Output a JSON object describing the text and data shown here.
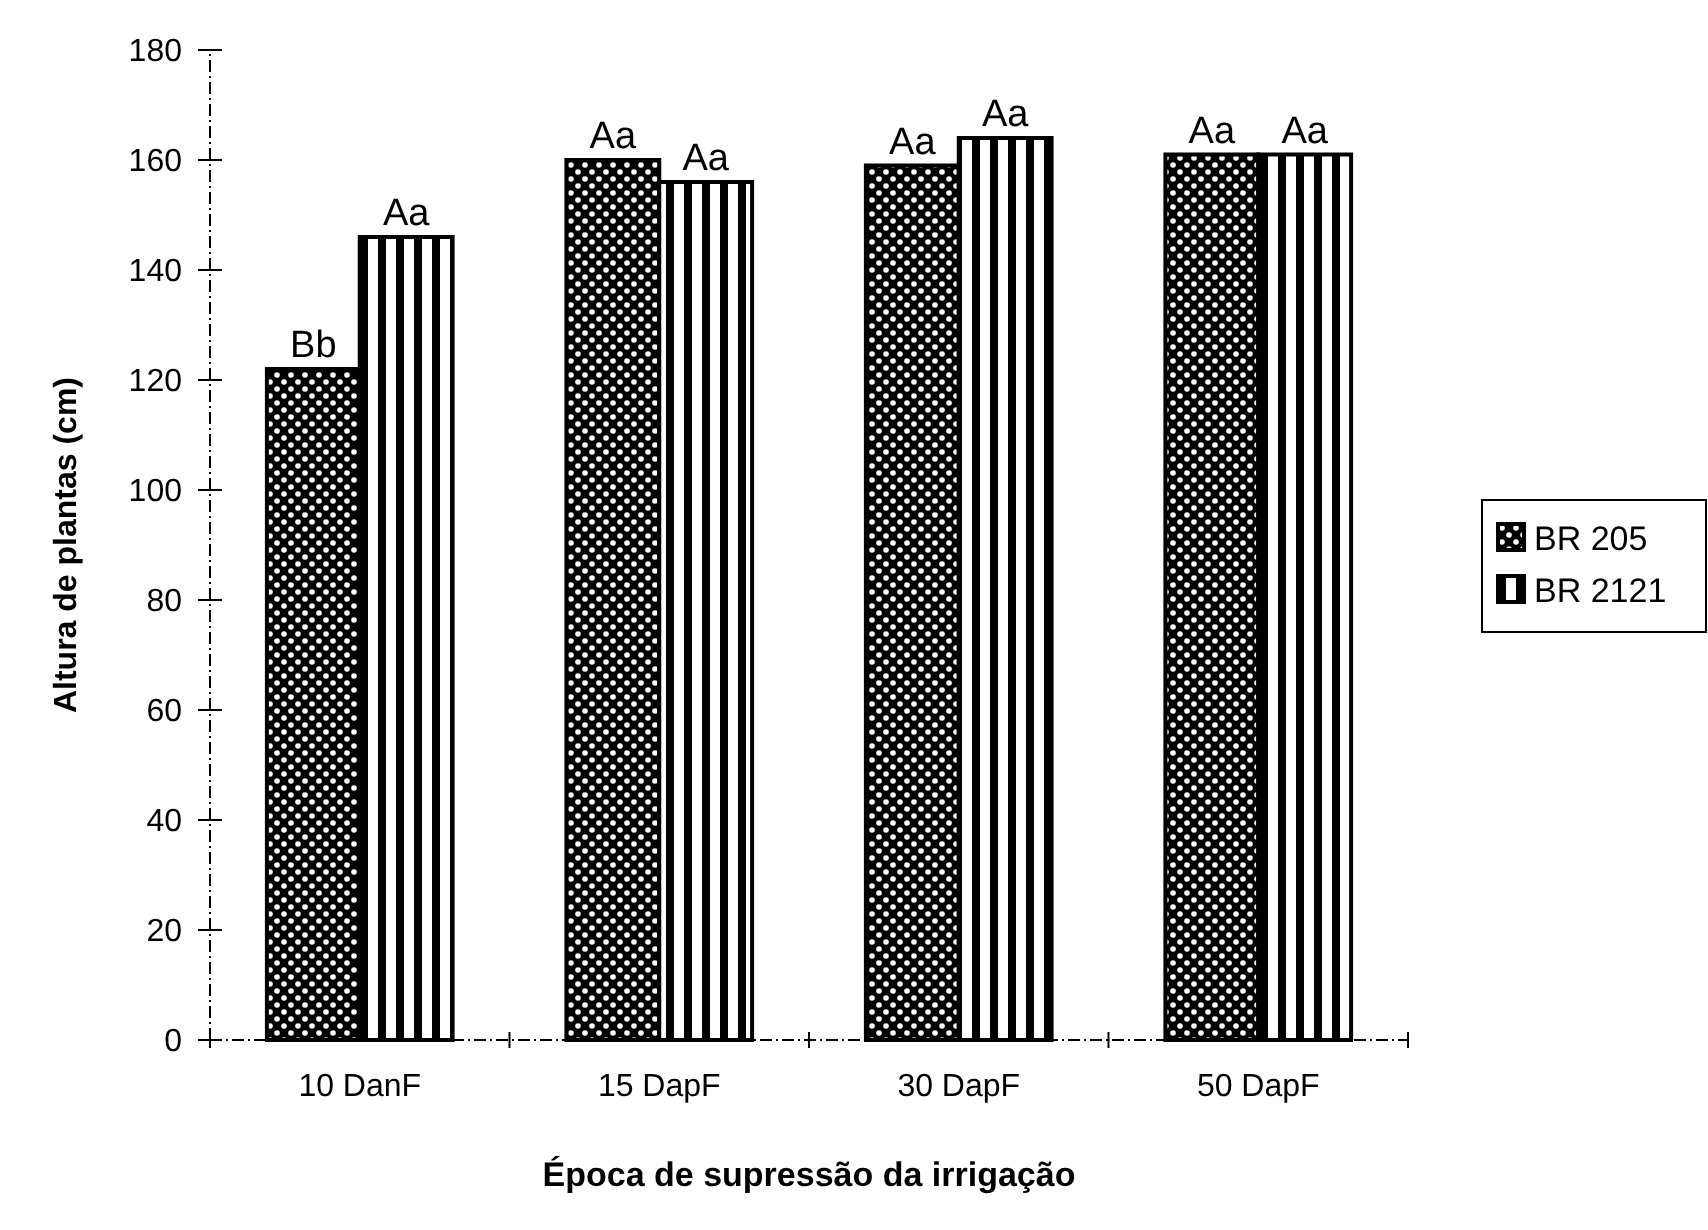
{
  "chart_data": {
    "type": "bar",
    "xlabel": "Época de supressão da irrigação",
    "ylabel": "Altura de plantas (cm)",
    "categories": [
      "10 DanF",
      "15 DapF",
      "30 DapF",
      "50 DapF"
    ],
    "series": [
      {
        "name": "BR 205",
        "color": "#000000",
        "values": [
          122,
          160,
          159,
          161
        ],
        "value_labels": [
          "Bb",
          "Aa",
          "Aa",
          "Aa"
        ]
      },
      {
        "name": "BR 2121",
        "color": "#000000",
        "values": [
          146,
          156,
          164,
          161
        ],
        "value_labels": [
          "Aa",
          "Aa",
          "Aa",
          "Aa"
        ]
      }
    ],
    "ylim": [
      0,
      180
    ],
    "yticks": [
      0,
      20,
      40,
      60,
      80,
      100,
      120,
      140,
      160,
      180
    ],
    "grid": false,
    "legend": "right"
  }
}
